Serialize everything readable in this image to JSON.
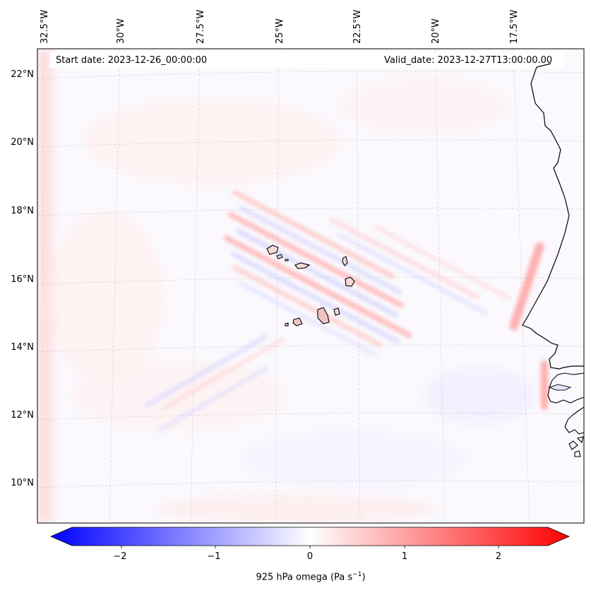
{
  "annotations": {
    "start": "Start date: 2023-12-26_00:00:00",
    "valid": "Valid_date: 2023-12-27T13:00:00.00"
  },
  "longitude_labels": [
    "32.5°W",
    "30°W",
    "27.5°W",
    "25°W",
    "22.5°W",
    "20°W",
    "17.5°W"
  ],
  "latitude_labels": [
    "22°N",
    "20°N",
    "18°N",
    "16°N",
    "14°N",
    "12°N",
    "10°N"
  ],
  "colorbar": {
    "ticks": [
      "−2",
      "−1",
      "0",
      "1",
      "2"
    ],
    "label": "925 hPa omega (Pa s",
    "label_sup": "−1",
    "label_end": ")",
    "colors": {
      "negative": "#0000ff",
      "zero": "#ffffff",
      "positive": "#ff0000"
    }
  },
  "coastline_color": "#000000",
  "gridline_color": "#c8c8c8"
}
